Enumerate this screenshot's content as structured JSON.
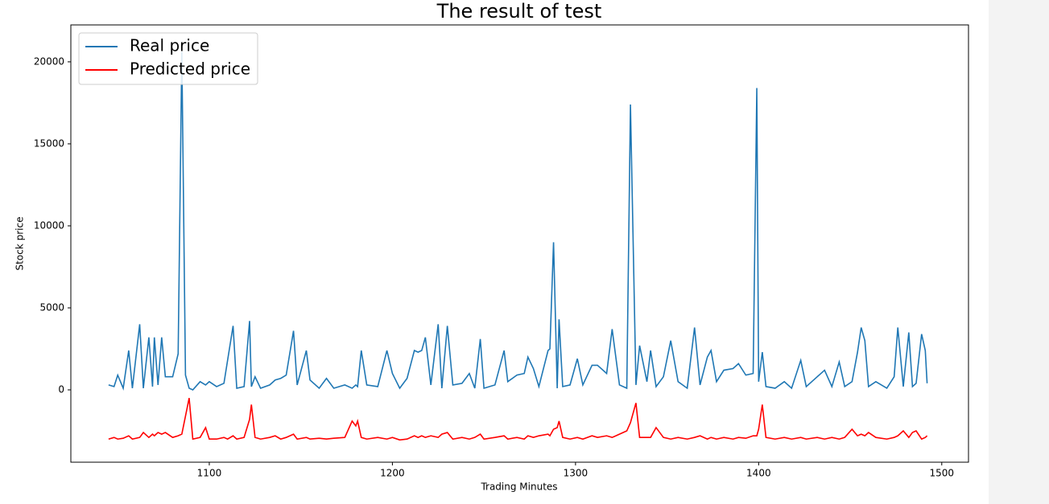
{
  "chart_data": {
    "type": "line",
    "title": "The result of test",
    "xlabel": "Trading Minutes",
    "ylabel": "Stock price",
    "x": [
      1045,
      1048,
      1050,
      1053,
      1056,
      1058,
      1062,
      1064,
      1067,
      1069,
      1070,
      1072,
      1074,
      1076,
      1080,
      1083,
      1085,
      1087,
      1089,
      1091,
      1095,
      1098,
      1100,
      1104,
      1108,
      1110,
      1113,
      1115,
      1119,
      1122,
      1123,
      1125,
      1128,
      1133,
      1136,
      1139,
      1142,
      1146,
      1148,
      1153,
      1155,
      1160,
      1164,
      1168,
      1174,
      1178,
      1180,
      1181,
      1183,
      1186,
      1192,
      1197,
      1200,
      1204,
      1208,
      1212,
      1214,
      1216,
      1218,
      1221,
      1225,
      1227,
      1230,
      1233,
      1238,
      1242,
      1245,
      1248,
      1250,
      1256,
      1261,
      1263,
      1268,
      1272,
      1274,
      1277,
      1280,
      1285,
      1286,
      1288,
      1290,
      1291,
      1293,
      1297,
      1301,
      1304,
      1309,
      1312,
      1317,
      1320,
      1324,
      1328,
      1330,
      1333,
      1335,
      1339,
      1341,
      1344,
      1348,
      1352,
      1356,
      1361,
      1365,
      1368,
      1372,
      1374,
      1377,
      1381,
      1386,
      1389,
      1393,
      1397,
      1399,
      1400,
      1402,
      1404,
      1409,
      1414,
      1418,
      1423,
      1426,
      1432,
      1436,
      1440,
      1444,
      1447,
      1451,
      1454,
      1456,
      1458,
      1460,
      1464,
      1470,
      1474,
      1476,
      1479,
      1482,
      1484,
      1486,
      1489,
      1491,
      1492
    ],
    "series": [
      {
        "name": "Real price",
        "color": "#1f77b4",
        "values": [
          300,
          200,
          900,
          100,
          2400,
          100,
          4000,
          100,
          3200,
          200,
          3200,
          300,
          3200,
          800,
          800,
          2200,
          20600,
          900,
          100,
          0,
          500,
          300,
          500,
          200,
          400,
          1800,
          3900,
          100,
          200,
          4200,
          200,
          800,
          100,
          300,
          600,
          700,
          900,
          3600,
          300,
          2400,
          600,
          100,
          700,
          100,
          300,
          100,
          300,
          200,
          2400,
          300,
          200,
          2400,
          1000,
          100,
          700,
          2400,
          2300,
          2400,
          3200,
          300,
          4000,
          100,
          3900,
          300,
          400,
          1000,
          100,
          3100,
          100,
          300,
          2400,
          500,
          900,
          1000,
          2000,
          1300,
          200,
          2400,
          2500,
          9000,
          100,
          4300,
          200,
          300,
          1900,
          300,
          1500,
          1500,
          1000,
          3700,
          300,
          100,
          17400,
          300,
          2700,
          500,
          2400,
          200,
          800,
          3000,
          500,
          100,
          3800,
          300,
          2000,
          2400,
          500,
          1200,
          1300,
          1600,
          900,
          1000,
          18400,
          500,
          2300,
          200,
          100,
          500,
          100,
          1800,
          200,
          800,
          1200,
          200,
          1700,
          200,
          500,
          2300,
          3800,
          3000,
          200,
          500,
          100,
          800,
          3800,
          200,
          3500,
          200,
          400,
          3400,
          2400,
          400
        ]
      },
      {
        "name": "Predicted price",
        "color": "#ff0000",
        "values": [
          -3000,
          -2900,
          -3000,
          -2950,
          -2800,
          -3000,
          -2900,
          -2600,
          -2900,
          -2700,
          -2800,
          -2600,
          -2700,
          -2600,
          -2900,
          -2800,
          -2700,
          -1600,
          -500,
          -3000,
          -2900,
          -2300,
          -3000,
          -3000,
          -2900,
          -3000,
          -2800,
          -3000,
          -2900,
          -1800,
          -900,
          -2900,
          -3000,
          -2900,
          -2800,
          -3000,
          -2900,
          -2700,
          -3000,
          -2900,
          -3000,
          -2950,
          -3000,
          -2950,
          -2900,
          -1900,
          -2200,
          -1900,
          -2900,
          -3000,
          -2900,
          -3000,
          -2900,
          -3050,
          -3000,
          -2800,
          -2900,
          -2800,
          -2900,
          -2800,
          -2900,
          -2700,
          -2600,
          -3000,
          -2900,
          -3000,
          -2900,
          -2700,
          -3000,
          -2900,
          -2800,
          -3000,
          -2900,
          -3000,
          -2800,
          -2900,
          -2800,
          -2700,
          -2800,
          -2400,
          -2300,
          -1900,
          -2900,
          -3000,
          -2900,
          -3000,
          -2800,
          -2900,
          -2800,
          -2900,
          -2700,
          -2500,
          -2000,
          -800,
          -2900,
          -2900,
          -2900,
          -2300,
          -2900,
          -3000,
          -2900,
          -3000,
          -2900,
          -2800,
          -3000,
          -2900,
          -3000,
          -2900,
          -3000,
          -2900,
          -2950,
          -2800,
          -2800,
          -2400,
          -900,
          -2900,
          -3000,
          -2900,
          -3000,
          -2900,
          -3000,
          -2900,
          -3000,
          -2900,
          -3000,
          -2900,
          -2400,
          -2800,
          -2700,
          -2800,
          -2600,
          -2900,
          -3000,
          -2900,
          -2800,
          -2500,
          -2900,
          -2600,
          -2500,
          -3000,
          -2900,
          -2800
        ]
      }
    ],
    "xlim": [
      1024.4,
      1514.6
    ],
    "ylim": [
      -4410,
      22250
    ],
    "xticks": [
      1100,
      1200,
      1300,
      1400,
      1500
    ],
    "yticks": [
      0,
      5000,
      10000,
      15000,
      20000
    ],
    "legend": "upper left"
  }
}
